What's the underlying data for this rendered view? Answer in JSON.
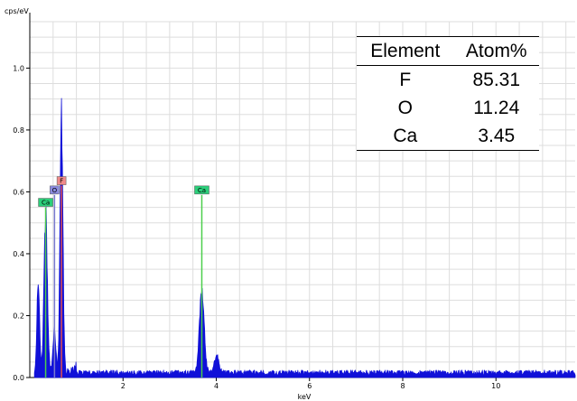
{
  "chart_data": {
    "type": "line",
    "ylabel": "cps/eV",
    "xlabel": "keV",
    "xlim": [
      0.0,
      11.7
    ],
    "ylim": [
      0.0,
      1.15
    ],
    "grid": true,
    "x_ticks": [
      2,
      4,
      6,
      8,
      10
    ],
    "y_ticks": [
      0.0,
      0.2,
      0.4,
      0.6,
      0.8,
      1.0
    ],
    "y_tick_labels": [
      "0.0",
      "0.2",
      "0.4",
      "0.6",
      "0.8",
      "1.0"
    ],
    "series_color": "#1010d8",
    "background_level": 0.015,
    "peaks": [
      {
        "x": 0.18,
        "height": 0.3,
        "width": 0.03
      },
      {
        "x": 0.34,
        "height": 0.56,
        "width": 0.035
      },
      {
        "x": 0.53,
        "height": 0.14,
        "width": 0.03
      },
      {
        "x": 0.68,
        "height": 0.9,
        "width": 0.03
      },
      {
        "x": 3.69,
        "height": 0.29,
        "width": 0.05
      },
      {
        "x": 4.01,
        "height": 0.06,
        "width": 0.05
      }
    ],
    "element_markers": [
      {
        "label": "Ca",
        "x": 0.34,
        "height": 0.55,
        "color": "#4ccf4c",
        "label_bg": "#2bcf7a"
      },
      {
        "label": "O",
        "x": 0.53,
        "height": 0.59,
        "color": "#7a7acf",
        "label_bg": "#8a8ae0"
      },
      {
        "label": "F",
        "x": 0.68,
        "height": 0.62,
        "color": "#e05050",
        "label_bg": "#f08a8a"
      },
      {
        "label": "Ca",
        "x": 3.69,
        "height": 0.59,
        "color": "#4ccf4c",
        "label_bg": "#2bcf7a"
      }
    ],
    "composition_table": {
      "columns": [
        "Element",
        "Atom%"
      ],
      "rows": [
        [
          "F",
          "85.31"
        ],
        [
          "O",
          "11.24"
        ],
        [
          "Ca",
          "3.45"
        ]
      ]
    }
  }
}
